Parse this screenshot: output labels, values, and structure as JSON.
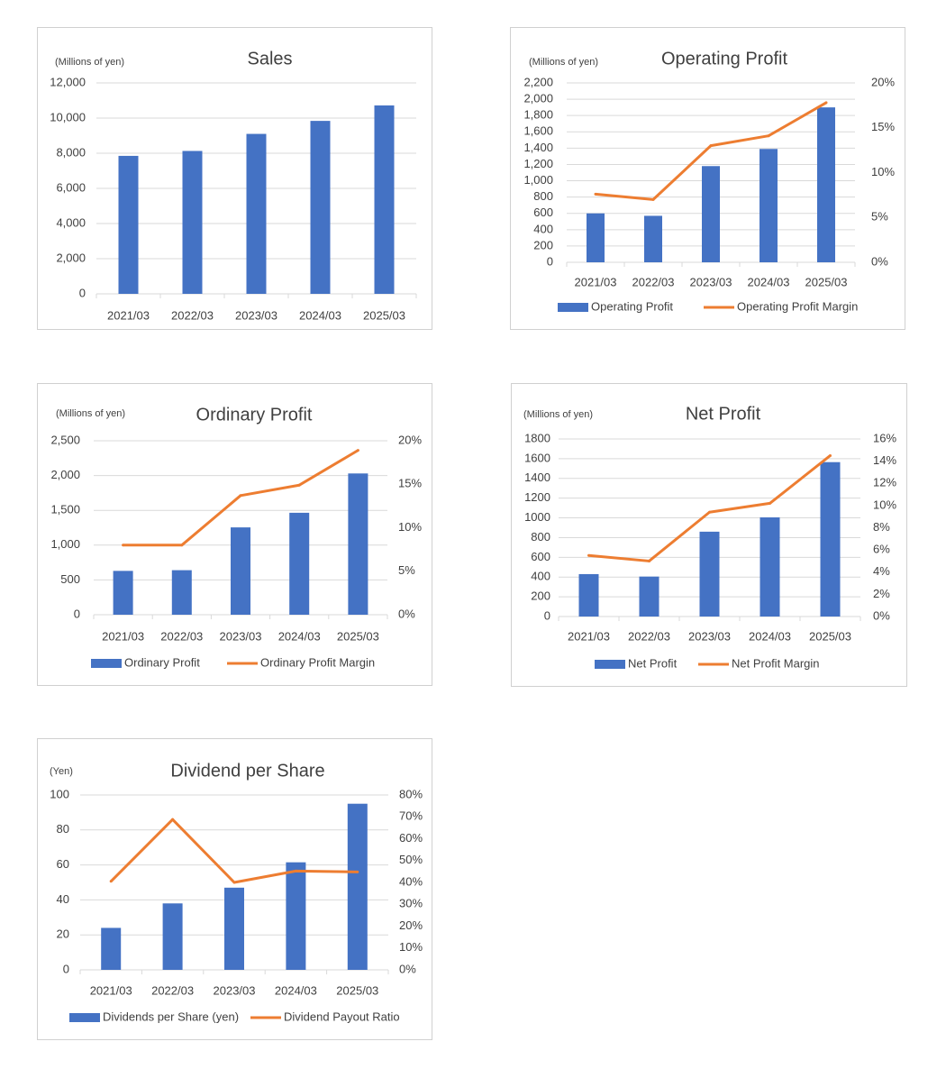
{
  "colors": {
    "bar": "#4472c4",
    "line": "#ed7d31",
    "grid": "#d9d9d9",
    "text": "#404040"
  },
  "chart_data": [
    {
      "type": "bar",
      "title": "Sales",
      "unit_label": "(Millions of yen)",
      "categories": [
        "2021/03",
        "2022/03",
        "2023/03",
        "2024/03",
        "2025/03"
      ],
      "series": [
        {
          "values": [
            7850,
            8130,
            9100,
            9840,
            10720
          ]
        }
      ],
      "ylim": [
        0,
        12000
      ],
      "yticks": [
        "0",
        "2,000",
        "4,000",
        "6,000",
        "8,000",
        "10,000",
        "12,000"
      ],
      "grid": true
    },
    {
      "type": "bar+line",
      "title": "Operating Profit",
      "unit_label": "(Millions of yen)",
      "categories": [
        "2021/03",
        "2022/03",
        "2023/03",
        "2024/03",
        "2025/03"
      ],
      "series": [
        {
          "name": "Operating Profit",
          "type": "bar",
          "values": [
            600,
            570,
            1180,
            1390,
            1900
          ]
        },
        {
          "name": "Operating Profit Margin",
          "type": "line",
          "axis": "right",
          "values": [
            7.6,
            7.0,
            13.0,
            14.1,
            17.8
          ]
        }
      ],
      "ylim": [
        0,
        2200
      ],
      "yticks": [
        "0",
        "200",
        "400",
        "600",
        "800",
        "1,000",
        "1,200",
        "1,400",
        "1,600",
        "1,800",
        "2,000",
        "2,200"
      ],
      "y2lim": [
        0,
        20
      ],
      "y2ticks": [
        "0%",
        "5%",
        "10%",
        "15%",
        "20%"
      ],
      "legend": "bottom",
      "grid": true
    },
    {
      "type": "bar+line",
      "title": "Ordinary Profit",
      "unit_label": "(Millions of yen)",
      "categories": [
        "2021/03",
        "2022/03",
        "2023/03",
        "2024/03",
        "2025/03"
      ],
      "series": [
        {
          "name": "Ordinary Profit",
          "type": "bar",
          "values": [
            630,
            640,
            1255,
            1465,
            2030
          ]
        },
        {
          "name": "Ordinary Profit Margin",
          "type": "line",
          "axis": "right",
          "values": [
            8.0,
            8.0,
            13.7,
            14.9,
            18.9
          ]
        }
      ],
      "ylim": [
        0,
        2500
      ],
      "yticks": [
        "0",
        "500",
        "1,000",
        "1,500",
        "2,000",
        "2,500"
      ],
      "y2lim": [
        0,
        20
      ],
      "y2ticks": [
        "0%",
        "5%",
        "10%",
        "15%",
        "20%"
      ],
      "legend": "bottom",
      "grid": true
    },
    {
      "type": "bar+line",
      "title": "Net Profit",
      "unit_label": "(Millions of yen)",
      "categories": [
        "2021/03",
        "2022/03",
        "2023/03",
        "2024/03",
        "2025/03"
      ],
      "series": [
        {
          "name": "Net Profit",
          "type": "bar",
          "values": [
            430,
            405,
            860,
            1005,
            1565
          ]
        },
        {
          "name": "Net Profit Margin",
          "type": "line",
          "axis": "right",
          "values": [
            5.5,
            5.0,
            9.4,
            10.2,
            14.5
          ]
        }
      ],
      "ylim": [
        0,
        1800
      ],
      "yticks": [
        "0",
        "200",
        "400",
        "600",
        "800",
        "1000",
        "1200",
        "1400",
        "1600",
        "1800"
      ],
      "y2lim": [
        0,
        16
      ],
      "y2ticks": [
        "0%",
        "2%",
        "4%",
        "6%",
        "8%",
        "10%",
        "12%",
        "14%",
        "16%"
      ],
      "legend": "bottom",
      "grid": true
    },
    {
      "type": "bar+line",
      "title": "Dividend per Share",
      "unit_label": "(Yen)",
      "categories": [
        "2021/03",
        "2022/03",
        "2023/03",
        "2024/03",
        "2025/03"
      ],
      "series": [
        {
          "name": "Dividends per Share (yen)",
          "type": "bar",
          "values": [
            24,
            38,
            47,
            61.5,
            95
          ]
        },
        {
          "name": "Dividend Payout Ratio",
          "type": "line",
          "axis": "right",
          "values": [
            40.5,
            68.8,
            40.0,
            45.2,
            44.8
          ]
        }
      ],
      "ylim": [
        0,
        100
      ],
      "yticks": [
        "0",
        "20",
        "40",
        "60",
        "80",
        "100"
      ],
      "y2lim": [
        0,
        80
      ],
      "y2ticks": [
        "0%",
        "10%",
        "20%",
        "30%",
        "40%",
        "50%",
        "60%",
        "70%",
        "80%"
      ],
      "legend": "bottom",
      "grid": true
    }
  ]
}
